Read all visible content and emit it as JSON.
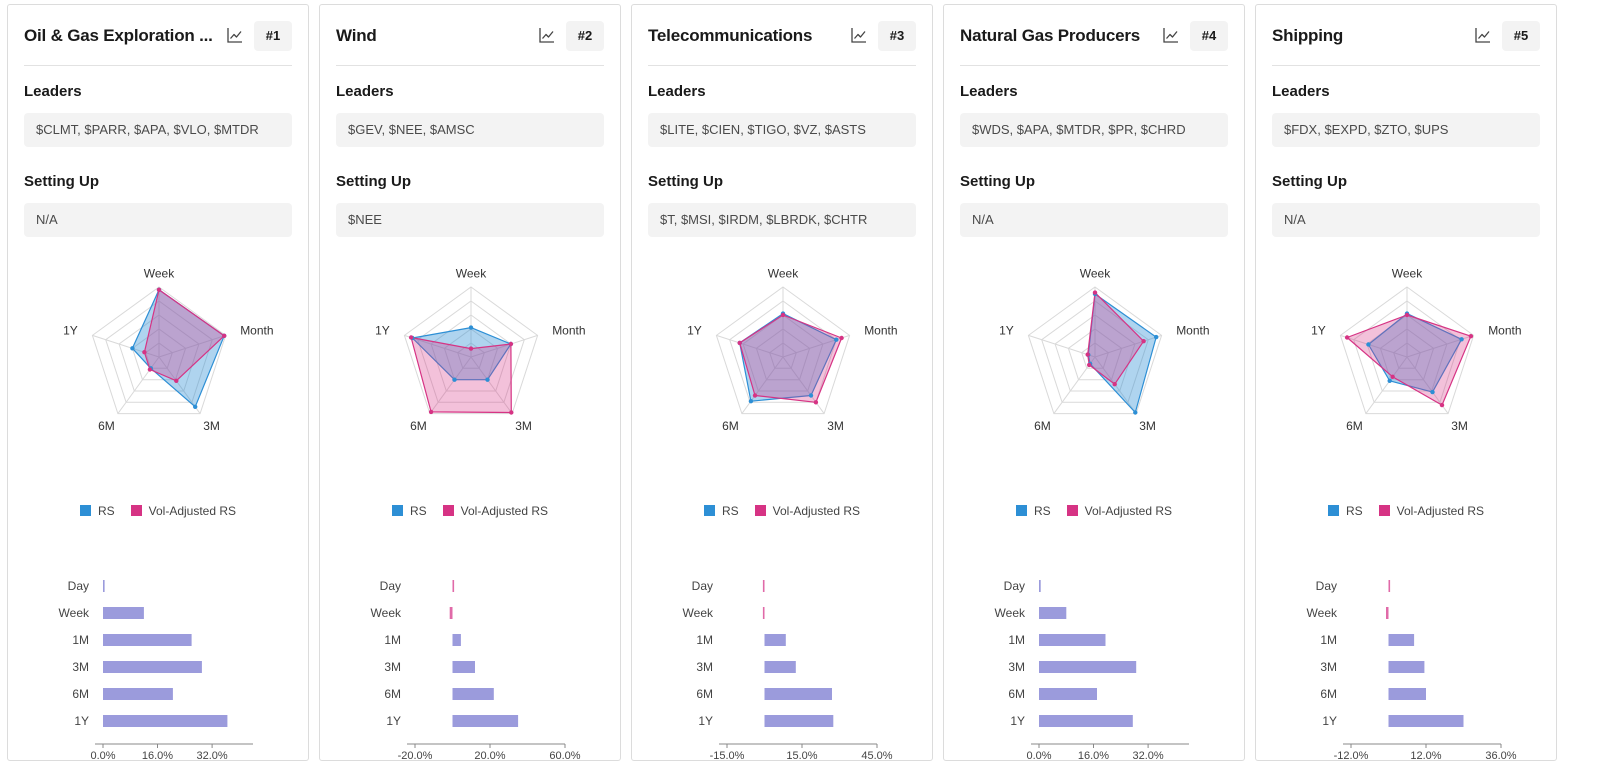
{
  "periods_radar": [
    "Week",
    "Month",
    "3M",
    "6M",
    "1Y"
  ],
  "legend": {
    "rs_label": "RS",
    "vol_label": "Vol-Adjusted RS",
    "rs_color": "#2d8fd5",
    "vol_color": "#d63384",
    "bar_color": "#9b9bdc",
    "neg_bar_color": "#e06aa8"
  },
  "cards": [
    {
      "title": "Oil & Gas Exploration ...",
      "rank": "#1",
      "leaders_label": "Leaders",
      "leaders": "$CLMT, $PARR, $APA, $VLO, $MTDR",
      "setting_label": "Setting Up",
      "setting": "N/A",
      "chart_data": {
        "radar": {
          "type": "radar",
          "axes": [
            "Week",
            "Month",
            "3M",
            "6M",
            "1Y"
          ],
          "range": [
            0,
            100
          ],
          "series": [
            {
              "name": "RS",
              "values": [
                96,
                98,
                88,
                20,
                40
              ]
            },
            {
              "name": "Vol-Adjusted RS",
              "values": [
                96,
                98,
                42,
                22,
                22
              ]
            }
          ]
        },
        "bars": {
          "type": "bar",
          "orientation": "horizontal",
          "categories": [
            "Day",
            "Week",
            "1M",
            "3M",
            "6M",
            "1Y"
          ],
          "values": [
            0.4,
            12,
            26,
            29,
            20.5,
            36.5
          ],
          "xlim": [
            0,
            44
          ],
          "ticks": [
            0,
            16,
            32
          ],
          "tick_labels": [
            "0.0%",
            "16.0%",
            "32.0%"
          ]
        }
      }
    },
    {
      "title": "Wind",
      "rank": "#2",
      "leaders_label": "Leaders",
      "leaders": "$GEV, $NEE, $AMSC",
      "setting_label": "Setting Up",
      "setting": "$NEE",
      "chart_data": {
        "radar": {
          "type": "radar",
          "axes": [
            "Week",
            "Month",
            "3M",
            "6M",
            "1Y"
          ],
          "range": [
            0,
            100
          ],
          "series": [
            {
              "name": "RS",
              "values": [
                42,
                60,
                40,
                40,
                88
              ]
            },
            {
              "name": "Vol-Adjusted RS",
              "values": [
                12,
                60,
                98,
                97,
                90
              ]
            }
          ]
        },
        "bars": {
          "type": "bar",
          "orientation": "horizontal",
          "categories": [
            "Day",
            "Week",
            "1M",
            "3M",
            "6M",
            "1Y"
          ],
          "values": [
            0.5,
            -1.5,
            4.5,
            12,
            22,
            35
          ],
          "xlim": [
            -20,
            60
          ],
          "ticks": [
            -20,
            20,
            60
          ],
          "tick_labels": [
            "-20.0%",
            "20.0%",
            "60.0%"
          ]
        }
      }
    },
    {
      "title": "Telecommunications",
      "rank": "#3",
      "leaders_label": "Leaders",
      "leaders": "$LITE, $CIEN, $TIGO, $VZ, $ASTS",
      "setting_label": "Setting Up",
      "setting": "$T, $MSI, $IRDM, $LBRDK, $CHTR",
      "chart_data": {
        "radar": {
          "type": "radar",
          "axes": [
            "Week",
            "Month",
            "3M",
            "6M",
            "1Y"
          ],
          "range": [
            0,
            100
          ],
          "series": [
            {
              "name": "RS",
              "values": [
                62,
                80,
                68,
                78,
                65
              ]
            },
            {
              "name": "Vol-Adjusted RS",
              "values": [
                60,
                88,
                80,
                68,
                65
              ]
            }
          ]
        },
        "bars": {
          "type": "bar",
          "orientation": "horizontal",
          "categories": [
            "Day",
            "Week",
            "1M",
            "3M",
            "6M",
            "1Y"
          ],
          "values": [
            -0.6,
            -0.2,
            8.5,
            12.5,
            27,
            27.5
          ],
          "xlim": [
            -15,
            45
          ],
          "ticks": [
            -15,
            15,
            45
          ],
          "tick_labels": [
            "-15.0%",
            "15.0%",
            "45.0%"
          ]
        }
      }
    },
    {
      "title": "Natural Gas Producers",
      "rank": "#4",
      "leaders_label": "Leaders",
      "leaders": "$WDS, $APA, $MTDR, $PR, $CHRD",
      "setting_label": "Setting Up",
      "setting": "N/A",
      "chart_data": {
        "radar": {
          "type": "radar",
          "axes": [
            "Week",
            "Month",
            "3M",
            "6M",
            "1Y"
          ],
          "range": [
            0,
            100
          ],
          "series": [
            {
              "name": "RS",
              "values": [
                90,
                92,
                98,
                12,
                10
              ]
            },
            {
              "name": "Vol-Adjusted RS",
              "values": [
                92,
                73,
                48,
                14,
                11
              ]
            }
          ]
        },
        "bars": {
          "type": "bar",
          "orientation": "horizontal",
          "categories": [
            "Day",
            "Week",
            "1M",
            "3M",
            "6M",
            "1Y"
          ],
          "values": [
            0.5,
            8,
            19.5,
            28.5,
            17,
            27.5
          ],
          "xlim": [
            0,
            44
          ],
          "ticks": [
            0,
            16,
            32
          ],
          "tick_labels": [
            "0.0%",
            "16.0%",
            "32.0%"
          ]
        }
      }
    },
    {
      "title": "Shipping",
      "rank": "#5",
      "leaders_label": "Leaders",
      "leaders": "$FDX, $EXPD, $ZTO, $UPS",
      "setting_label": "Setting Up",
      "setting": "N/A",
      "chart_data": {
        "radar": {
          "type": "radar",
          "axes": [
            "Week",
            "Month",
            "3M",
            "6M",
            "1Y"
          ],
          "range": [
            0,
            100
          ],
          "series": [
            {
              "name": "RS",
              "values": [
                62,
                82,
                62,
                42,
                58
              ]
            },
            {
              "name": "Vol-Adjusted RS",
              "values": [
                60,
                96,
                85,
                35,
                90
              ]
            }
          ]
        },
        "bars": {
          "type": "bar",
          "orientation": "horizontal",
          "categories": [
            "Day",
            "Week",
            "1M",
            "3M",
            "6M",
            "1Y"
          ],
          "values": [
            0.3,
            -0.8,
            8.2,
            11.5,
            12,
            24
          ],
          "xlim": [
            -12,
            36
          ],
          "ticks": [
            -12,
            12,
            36
          ],
          "tick_labels": [
            "-12.0%",
            "12.0%",
            "36.0%"
          ]
        }
      }
    }
  ]
}
